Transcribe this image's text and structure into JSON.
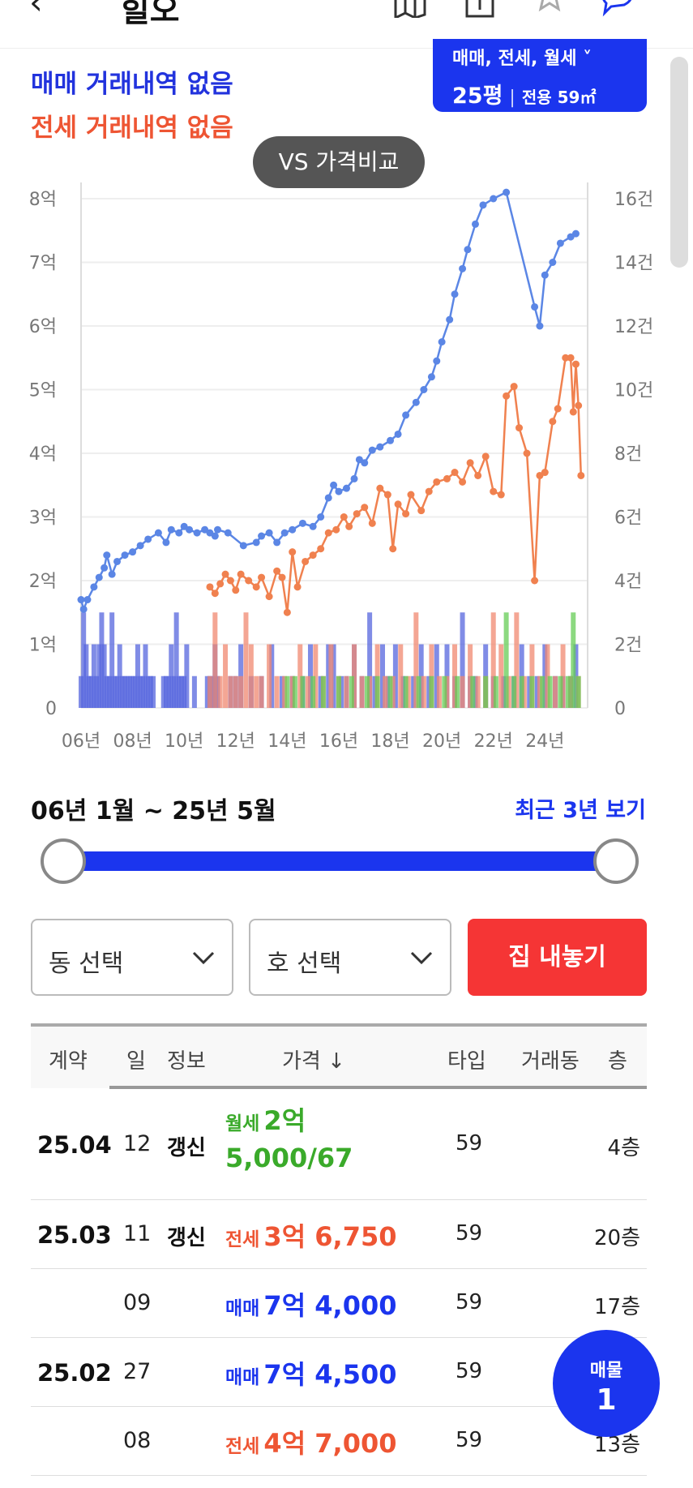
{
  "header": {
    "back": "‹",
    "title": "힐오"
  },
  "summary": {
    "sale_none": "매매 거래내역 없음",
    "jeonse_none": "전세 거래내역 없음"
  },
  "type_selector": {
    "deal_types": "매매, 전세, 월세 ˅",
    "size": "25평",
    "area": "전용 59㎡"
  },
  "vs_button": "VS 가격비교",
  "chart_data": {
    "type": "line",
    "title": "",
    "x_ticks": [
      "06년",
      "08년",
      "10년",
      "12년",
      "14년",
      "16년",
      "18년",
      "20년",
      "22년",
      "24년"
    ],
    "y_left_ticks": [
      "0",
      "1억",
      "2억",
      "3억",
      "4억",
      "5억",
      "6억",
      "7억",
      "8억"
    ],
    "y_right_ticks": [
      "0",
      "2건",
      "4건",
      "6건",
      "8건",
      "10건",
      "12건",
      "14건",
      "16건"
    ],
    "ylim_left": [
      0,
      8
    ],
    "ylim_right": [
      0,
      16
    ],
    "xlim": [
      2006.0,
      2025.5
    ],
    "grid": true,
    "series": [
      {
        "kind": "sale",
        "color": "#5b86e5",
        "points": [
          [
            2006.0,
            1.7
          ],
          [
            2006.1,
            1.55
          ],
          [
            2006.25,
            1.7
          ],
          [
            2006.5,
            1.9
          ],
          [
            2006.7,
            2.05
          ],
          [
            2006.9,
            2.2
          ],
          [
            2007.0,
            2.4
          ],
          [
            2007.2,
            2.1
          ],
          [
            2007.4,
            2.3
          ],
          [
            2007.7,
            2.4
          ],
          [
            2008.0,
            2.45
          ],
          [
            2008.3,
            2.55
          ],
          [
            2008.6,
            2.65
          ],
          [
            2009.0,
            2.75
          ],
          [
            2009.3,
            2.6
          ],
          [
            2009.5,
            2.8
          ],
          [
            2009.8,
            2.75
          ],
          [
            2010.0,
            2.85
          ],
          [
            2010.2,
            2.8
          ],
          [
            2010.5,
            2.75
          ],
          [
            2010.8,
            2.8
          ],
          [
            2011.0,
            2.75
          ],
          [
            2011.2,
            2.7
          ],
          [
            2011.3,
            2.8
          ],
          [
            2011.7,
            2.75
          ],
          [
            2012.3,
            2.55
          ],
          [
            2012.8,
            2.6
          ],
          [
            2013.0,
            2.7
          ],
          [
            2013.3,
            2.75
          ],
          [
            2013.6,
            2.6
          ],
          [
            2013.9,
            2.75
          ],
          [
            2014.2,
            2.8
          ],
          [
            2014.6,
            2.9
          ],
          [
            2015.0,
            2.85
          ],
          [
            2015.3,
            3.0
          ],
          [
            2015.6,
            3.3
          ],
          [
            2015.8,
            3.5
          ],
          [
            2016.0,
            3.4
          ],
          [
            2016.3,
            3.45
          ],
          [
            2016.6,
            3.6
          ],
          [
            2016.8,
            3.9
          ],
          [
            2017.0,
            3.85
          ],
          [
            2017.3,
            4.05
          ],
          [
            2017.6,
            4.1
          ],
          [
            2018.0,
            4.2
          ],
          [
            2018.3,
            4.3
          ],
          [
            2018.6,
            4.6
          ],
          [
            2019.0,
            4.8
          ],
          [
            2019.3,
            5.0
          ],
          [
            2019.6,
            5.2
          ],
          [
            2019.8,
            5.45
          ],
          [
            2020.0,
            5.75
          ],
          [
            2020.3,
            6.1
          ],
          [
            2020.5,
            6.5
          ],
          [
            2020.8,
            6.9
          ],
          [
            2021.0,
            7.2
          ],
          [
            2021.3,
            7.6
          ],
          [
            2021.6,
            7.9
          ],
          [
            2022.0,
            8.0
          ],
          [
            2022.5,
            8.1
          ],
          [
            2023.6,
            6.3
          ],
          [
            2023.8,
            6.0
          ],
          [
            2024.0,
            6.8
          ],
          [
            2024.3,
            7.0
          ],
          [
            2024.6,
            7.3
          ],
          [
            2025.0,
            7.4
          ],
          [
            2025.2,
            7.45
          ]
        ]
      },
      {
        "kind": "jeonse",
        "color": "#f0814f",
        "points": [
          [
            2011.0,
            1.9
          ],
          [
            2011.2,
            1.8
          ],
          [
            2011.4,
            1.95
          ],
          [
            2011.6,
            2.1
          ],
          [
            2011.8,
            2.0
          ],
          [
            2012.0,
            1.85
          ],
          [
            2012.2,
            2.1
          ],
          [
            2012.5,
            2.0
          ],
          [
            2012.8,
            1.9
          ],
          [
            2013.0,
            2.05
          ],
          [
            2013.3,
            1.75
          ],
          [
            2013.6,
            2.15
          ],
          [
            2013.8,
            2.05
          ],
          [
            2014.0,
            1.5
          ],
          [
            2014.2,
            2.45
          ],
          [
            2014.4,
            1.9
          ],
          [
            2014.7,
            2.3
          ],
          [
            2015.0,
            2.4
          ],
          [
            2015.3,
            2.5
          ],
          [
            2015.6,
            2.75
          ],
          [
            2015.9,
            2.8
          ],
          [
            2016.2,
            3.0
          ],
          [
            2016.4,
            2.85
          ],
          [
            2016.7,
            3.05
          ],
          [
            2017.0,
            3.15
          ],
          [
            2017.3,
            2.9
          ],
          [
            2017.6,
            3.45
          ],
          [
            2017.9,
            3.35
          ],
          [
            2018.1,
            2.5
          ],
          [
            2018.3,
            3.2
          ],
          [
            2018.6,
            3.05
          ],
          [
            2018.8,
            3.35
          ],
          [
            2019.2,
            3.1
          ],
          [
            2019.5,
            3.4
          ],
          [
            2019.8,
            3.55
          ],
          [
            2020.2,
            3.6
          ],
          [
            2020.5,
            3.7
          ],
          [
            2020.8,
            3.55
          ],
          [
            2021.1,
            3.85
          ],
          [
            2021.4,
            3.65
          ],
          [
            2021.7,
            3.95
          ],
          [
            2022.0,
            3.4
          ],
          [
            2022.3,
            3.35
          ],
          [
            2022.5,
            4.9
          ],
          [
            2022.8,
            5.05
          ],
          [
            2023.0,
            4.4
          ],
          [
            2023.3,
            4.0
          ],
          [
            2023.6,
            2.0
          ],
          [
            2023.8,
            3.65
          ],
          [
            2024.0,
            3.7
          ],
          [
            2024.3,
            4.5
          ],
          [
            2024.5,
            4.7
          ],
          [
            2024.8,
            5.5
          ],
          [
            2025.0,
            5.5
          ],
          [
            2025.1,
            4.65
          ],
          [
            2025.2,
            5.4
          ],
          [
            2025.3,
            4.75
          ],
          [
            2025.4,
            3.65
          ]
        ]
      }
    ],
    "volume": [
      {
        "kind": "sale",
        "color": "#5566dd",
        "x": [
          2006.0,
          2006.1,
          2006.2,
          2006.3,
          2006.4,
          2006.5,
          2006.6,
          2006.7,
          2006.8,
          2006.9,
          2007.0,
          2007.1,
          2007.2,
          2007.3,
          2007.4,
          2007.5,
          2007.6,
          2007.7,
          2007.8,
          2007.9,
          2008.0,
          2008.1,
          2008.2,
          2008.3,
          2008.4,
          2008.5,
          2008.6,
          2008.7,
          2008.8,
          2009.2,
          2009.3,
          2009.4,
          2009.5,
          2009.6,
          2009.7,
          2009.8,
          2009.9,
          2010.0,
          2010.1,
          2010.4,
          2010.9,
          2011.0,
          2011.1,
          2011.2,
          2011.3,
          2011.8,
          2012.0,
          2012.2,
          2012.6,
          2013.0,
          2013.4,
          2013.8,
          2014.2,
          2014.6,
          2014.9,
          2015.3,
          2015.6,
          2015.8,
          2016.1,
          2016.3,
          2016.6,
          2016.9,
          2017.2,
          2017.4,
          2017.7,
          2017.9,
          2018.2,
          2018.5,
          2018.9,
          2019.2,
          2019.5,
          2019.8,
          2020.2,
          2020.5,
          2020.8,
          2021.1,
          2021.3,
          2021.7,
          2022.0,
          2022.4,
          2022.8,
          2023.1,
          2023.4,
          2023.7,
          2024.0,
          2024.4,
          2024.7,
          2025.0,
          2025.2
        ],
        "v": [
          1,
          3,
          2,
          1,
          1,
          2,
          1,
          2,
          3,
          2,
          1,
          1,
          3,
          1,
          1,
          2,
          1,
          1,
          1,
          1,
          1,
          1,
          2,
          1,
          1,
          2,
          1,
          1,
          1,
          1,
          1,
          1,
          2,
          1,
          3,
          1,
          1,
          1,
          2,
          1,
          1,
          1,
          1,
          2,
          1,
          1,
          1,
          2,
          1,
          1,
          2,
          1,
          1,
          1,
          2,
          1,
          2,
          2,
          1,
          1,
          2,
          1,
          3,
          1,
          2,
          1,
          2,
          1,
          1,
          2,
          1,
          2,
          2,
          1,
          3,
          1,
          1,
          2,
          1,
          1,
          1,
          2,
          1,
          1,
          2,
          1,
          1,
          1,
          2
        ]
      },
      {
        "kind": "jeonse",
        "color": "#f08870",
        "x": [
          2011.0,
          2011.2,
          2011.4,
          2011.6,
          2011.8,
          2012.0,
          2012.2,
          2012.4,
          2012.6,
          2012.8,
          2013.0,
          2013.3,
          2013.6,
          2013.9,
          2014.2,
          2014.5,
          2014.8,
          2015.1,
          2015.4,
          2015.7,
          2016.0,
          2016.3,
          2016.6,
          2016.9,
          2017.2,
          2017.5,
          2017.8,
          2018.1,
          2018.4,
          2018.7,
          2019.0,
          2019.3,
          2019.6,
          2019.9,
          2020.2,
          2020.5,
          2020.8,
          2021.1,
          2021.4,
          2021.7,
          2022.0,
          2022.3,
          2022.6,
          2022.9,
          2023.2,
          2023.5,
          2023.8,
          2024.1,
          2024.4,
          2024.7,
          2025.0,
          2025.3
        ],
        "v": [
          1,
          3,
          1,
          2,
          1,
          1,
          1,
          3,
          2,
          1,
          1,
          2,
          1,
          1,
          1,
          2,
          1,
          2,
          1,
          2,
          1,
          1,
          2,
          1,
          1,
          2,
          1,
          1,
          2,
          1,
          3,
          1,
          2,
          1,
          1,
          2,
          1,
          2,
          1,
          1,
          3,
          2,
          1,
          3,
          1,
          2,
          1,
          2,
          1,
          2,
          1,
          1
        ]
      },
      {
        "kind": "monthly",
        "color": "#66cc55",
        "x": [
          2014.0,
          2014.3,
          2014.6,
          2015.0,
          2015.4,
          2016.0,
          2016.5,
          2017.1,
          2017.5,
          2018.0,
          2018.6,
          2019.1,
          2019.6,
          2020.1,
          2020.6,
          2021.2,
          2021.7,
          2022.1,
          2022.5,
          2022.8,
          2023.1,
          2023.5,
          2023.9,
          2024.2,
          2024.6,
          2024.9,
          2025.1,
          2025.3
        ],
        "v": [
          1,
          1,
          1,
          1,
          1,
          1,
          1,
          1,
          1,
          1,
          1,
          1,
          1,
          1,
          1,
          1,
          1,
          1,
          3,
          1,
          1,
          1,
          1,
          1,
          1,
          1,
          3,
          1
        ]
      }
    ]
  },
  "period": {
    "range": "06년 1월 ~ 25년 5월",
    "recent_link": "최근 3년 보기",
    "start_fraction": 0,
    "end_fraction": 1
  },
  "filters": {
    "dong": "동 선택",
    "ho": "호 선택",
    "list_house": "집 내놓기"
  },
  "table": {
    "headers": {
      "contract": "계약",
      "day": "일",
      "info": "정보",
      "price": "가격 ↓",
      "type": "타입",
      "dong": "거래동",
      "floor": "층"
    },
    "rows": [
      {
        "date": "25.04",
        "day": "12",
        "info": "갱신",
        "kind": "월세",
        "amount": "2억",
        "amount2": "5,000/67",
        "type": "59",
        "floor": "4층",
        "cls": "c-wol"
      },
      {
        "date": "25.03",
        "day": "11",
        "info": "갱신",
        "kind": "전세",
        "amount": "3억 6,750",
        "type": "59",
        "floor": "20층",
        "cls": "c-jeon"
      },
      {
        "date": "",
        "day": "09",
        "info": "",
        "kind": "매매",
        "amount": "7억 4,000",
        "type": "59",
        "floor": "17층",
        "cls": "c-sale"
      },
      {
        "date": "25.02",
        "day": "27",
        "info": "",
        "kind": "매매",
        "amount": "7억 4,500",
        "type": "59",
        "floor": "",
        "cls": "c-sale"
      },
      {
        "date": "",
        "day": "08",
        "info": "",
        "kind": "전세",
        "amount": "4억 7,000",
        "type": "59",
        "floor": "13층",
        "cls": "c-jeon"
      }
    ]
  },
  "fab": {
    "label": "매물",
    "count": "1"
  }
}
